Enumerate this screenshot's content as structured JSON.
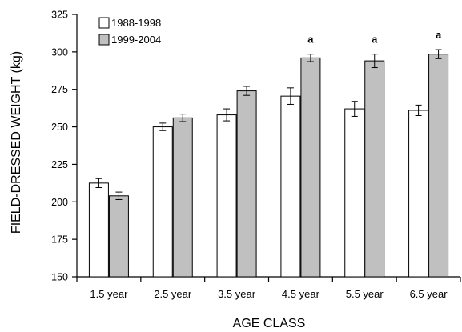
{
  "chart_data": {
    "type": "bar",
    "title": "",
    "xlabel": "AGE CLASS",
    "ylabel": "FIELD-DRESSED WEIGHT (kg)",
    "ylim": [
      150,
      325
    ],
    "yticks": [
      150,
      175,
      200,
      225,
      250,
      275,
      300,
      325
    ],
    "categories": [
      "1.5 year",
      "2.5 year",
      "3.5 year",
      "4.5 year",
      "5.5 year",
      "6.5 year"
    ],
    "series": [
      {
        "name": "1988-1998",
        "color": "#ffffff",
        "values": [
          212.5,
          250,
          258,
          270.5,
          262,
          261
        ],
        "errors": [
          3,
          2.5,
          4,
          5.5,
          5,
          3.5
        ]
      },
      {
        "name": "1999-2004",
        "color": "#c0c0c0",
        "values": [
          204,
          256,
          274,
          296,
          294,
          298.5
        ],
        "errors": [
          2.5,
          2.5,
          3,
          2.5,
          4.5,
          3
        ]
      }
    ],
    "annotations": [
      "",
      "",
      "",
      "a",
      "a",
      "a"
    ],
    "grid": false,
    "legend_position": "top-left"
  }
}
